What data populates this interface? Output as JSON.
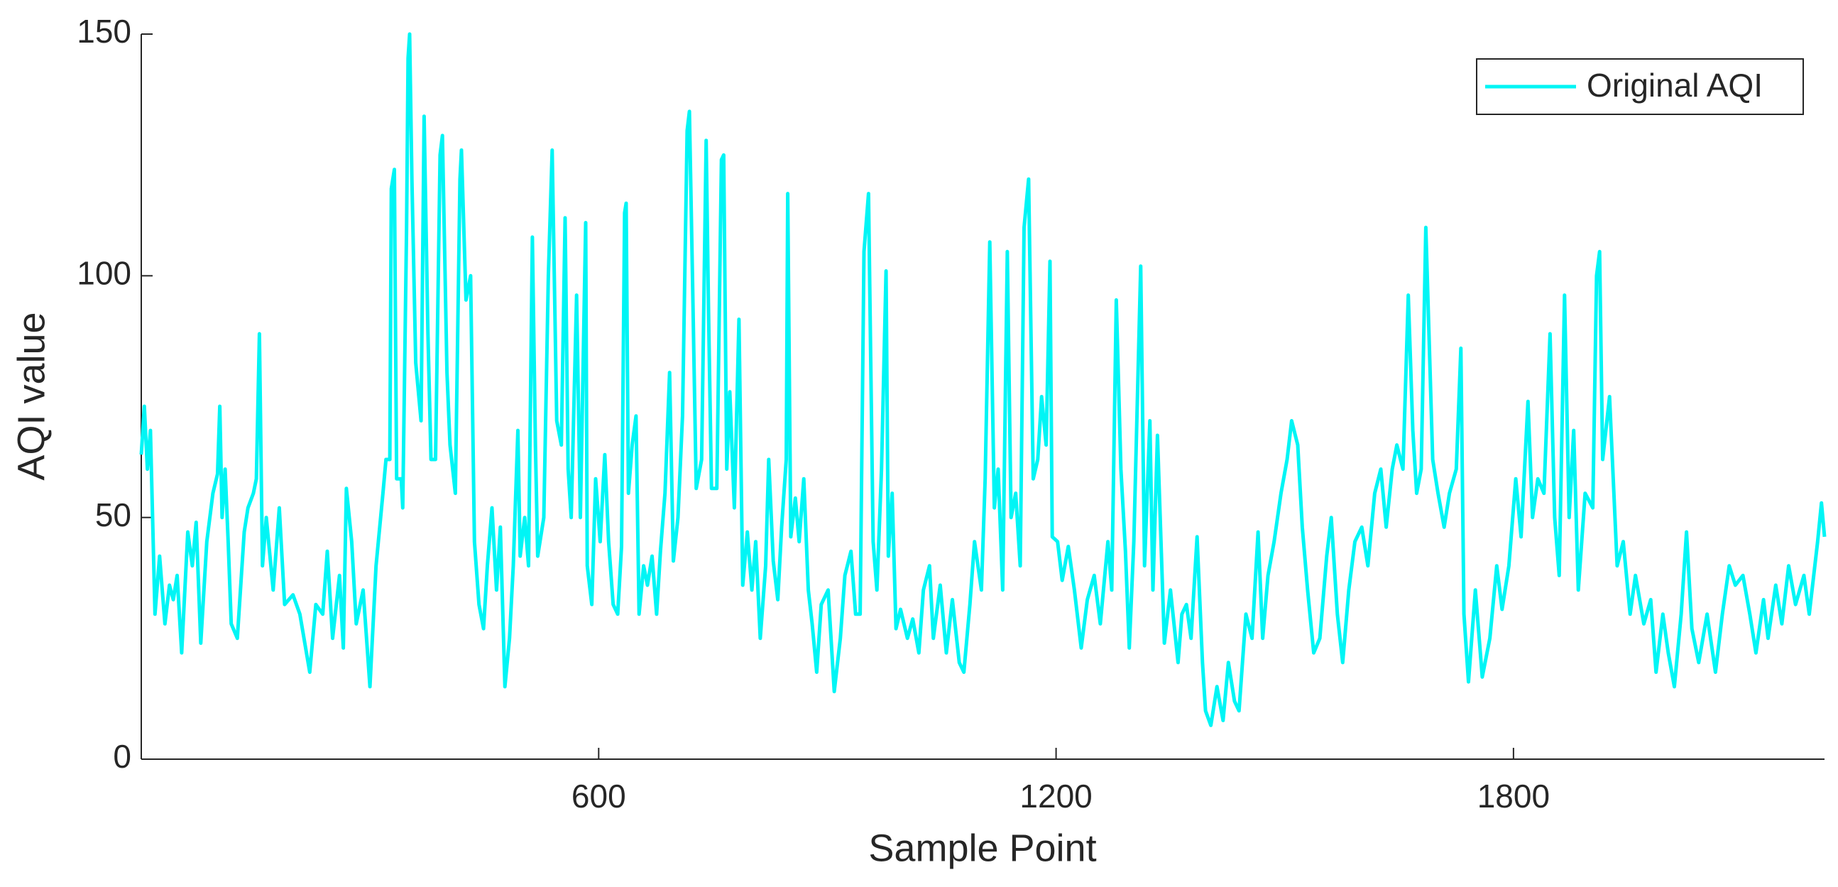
{
  "chart_data": {
    "type": "line",
    "xlabel": "Sample Point",
    "ylabel": "AQI value",
    "xlim": [
      0,
      2208
    ],
    "ylim": [
      0,
      150
    ],
    "xticks": [
      600,
      1200,
      1800
    ],
    "yticks": [
      0,
      50,
      100,
      150
    ],
    "legend": "northeast",
    "x": [
      0,
      4,
      8,
      12,
      18,
      24,
      31,
      37,
      42,
      47,
      53,
      61,
      67,
      72,
      78,
      86,
      94,
      100,
      103,
      106,
      110,
      114,
      118,
      126,
      135,
      140,
      147,
      151,
      155,
      159,
      164,
      173,
      181,
      188,
      199,
      208,
      221,
      229,
      238,
      244,
      251,
      260,
      265,
      269,
      276,
      282,
      291,
      300,
      308,
      317,
      321,
      326,
      328,
      332,
      335,
      341,
      343,
      348,
      350,
      352,
      355,
      360,
      367,
      371,
      376,
      380,
      386,
      392,
      395,
      401,
      405,
      412,
      418,
      420,
      426,
      432,
      437,
      443,
      449,
      454,
      460,
      466,
      471,
      477,
      483,
      488,
      494,
      497,
      503,
      508,
      513,
      517,
      520,
      528,
      534,
      539,
      545,
      551,
      556,
      560,
      564,
      571,
      576,
      583,
      585,
      591,
      596,
      602,
      608,
      613,
      619,
      625,
      630,
      634,
      636,
      639,
      644,
      649,
      653,
      659,
      664,
      670,
      676,
      681,
      687,
      693,
      698,
      704,
      710,
      716,
      719,
      723,
      728,
      735,
      741,
      744,
      748,
      755,
      761,
      764,
      768,
      772,
      778,
      784,
      789,
      795,
      801,
      806,
      812,
      819,
      823,
      829,
      835,
      840,
      846,
      848,
      852,
      858,
      863,
      869,
      875,
      880,
      886,
      892,
      901,
      909,
      917,
      923,
      931,
      937,
      943,
      948,
      954,
      960,
      965,
      971,
      977,
      980,
      985,
      990,
      996,
      1005,
      1012,
      1020,
      1026,
      1034,
      1039,
      1048,
      1056,
      1064,
      1073,
      1079,
      1087,
      1093,
      1102,
      1107,
      1113,
      1119,
      1124,
      1130,
      1136,
      1141,
      1147,
      1153,
      1158,
      1164,
      1170,
      1176,
      1181,
      1187,
      1192,
      1195,
      1202,
      1208,
      1216,
      1224,
      1233,
      1241,
      1250,
      1258,
      1268,
      1273,
      1279,
      1285,
      1291,
      1296,
      1302,
      1311,
      1316,
      1323,
      1327,
      1333,
      1342,
      1350,
      1360,
      1365,
      1371,
      1377,
      1385,
      1392,
      1396,
      1403,
      1411,
      1419,
      1426,
      1434,
      1440,
      1449,
      1457,
      1465,
      1471,
      1478,
      1486,
      1495,
      1503,
      1509,
      1517,
      1523,
      1530,
      1538,
      1546,
      1555,
      1561,
      1569,
      1576,
      1584,
      1592,
      1601,
      1609,
      1618,
      1626,
      1633,
      1641,
      1647,
      1655,
      1662,
      1668,
      1673,
      1679,
      1685,
      1694,
      1701,
      1709,
      1716,
      1725,
      1731,
      1735,
      1741,
      1750,
      1759,
      1769,
      1778,
      1785,
      1794,
      1803,
      1810,
      1819,
      1825,
      1832,
      1840,
      1848,
      1854,
      1860,
      1867,
      1873,
      1879,
      1885,
      1894,
      1904,
      1909,
      1913,
      1917,
      1926,
      1936,
      1944,
      1953,
      1960,
      1971,
      1980,
      1987,
      1996,
      2003,
      2011,
      2020,
      2027,
      2034,
      2043,
      2054,
      2065,
      2074,
      2083,
      2091,
      2101,
      2110,
      2118,
      2128,
      2134,
      2144,
      2152,
      2161,
      2170,
      2181,
      2188,
      2199,
      2204,
      2208
    ],
    "series": [
      {
        "name": "Original AQI",
        "color": "#00f5f5",
        "values": [
          63,
          73,
          60,
          68,
          30,
          42,
          28,
          36,
          33,
          38,
          22,
          47,
          40,
          49,
          24,
          45,
          55,
          59,
          73,
          50,
          60,
          45,
          28,
          25,
          47,
          52,
          55,
          58,
          88,
          40,
          50,
          35,
          52,
          32,
          34,
          30,
          18,
          32,
          30,
          43,
          25,
          38,
          23,
          56,
          45,
          28,
          35,
          15,
          40,
          55,
          62,
          62,
          118,
          122,
          58,
          58,
          52,
          110,
          145,
          150,
          120,
          82,
          70,
          133,
          88,
          62,
          62,
          125,
          129,
          80,
          65,
          55,
          120,
          126,
          95,
          100,
          45,
          32,
          27,
          40,
          52,
          35,
          48,
          15,
          25,
          40,
          68,
          42,
          50,
          40,
          108,
          65,
          42,
          50,
          100,
          126,
          70,
          65,
          112,
          60,
          50,
          96,
          50,
          111,
          40,
          32,
          58,
          45,
          63,
          45,
          32,
          30,
          44,
          113,
          115,
          55,
          65,
          71,
          30,
          40,
          36,
          42,
          30,
          43,
          55,
          80,
          41,
          50,
          71,
          130,
          134,
          100,
          56,
          62,
          128,
          94,
          56,
          56,
          124,
          125,
          60,
          76,
          52,
          91,
          36,
          47,
          35,
          45,
          25,
          40,
          62,
          41,
          33,
          48,
          62,
          117,
          46,
          54,
          45,
          58,
          35,
          28,
          18,
          32,
          35,
          14,
          25,
          38,
          43,
          30,
          30,
          105,
          117,
          45,
          35,
          60,
          101,
          42,
          55,
          27,
          31,
          25,
          29,
          22,
          35,
          40,
          25,
          36,
          22,
          33,
          20,
          18,
          32,
          45,
          35,
          58,
          107,
          52,
          60,
          35,
          105,
          50,
          55,
          40,
          110,
          120,
          58,
          62,
          75,
          65,
          103,
          46,
          45,
          37,
          44,
          35,
          23,
          33,
          38,
          28,
          45,
          35,
          95,
          60,
          43,
          23,
          45,
          102,
          40,
          70,
          35,
          67,
          24,
          35,
          20,
          30,
          32,
          25,
          46,
          20,
          10,
          7,
          15,
          8,
          20,
          12,
          10,
          30,
          25,
          47,
          25,
          38,
          45,
          55,
          62,
          70,
          65,
          48,
          35,
          22,
          25,
          42,
          50,
          30,
          20,
          35,
          45,
          48,
          40,
          55,
          60,
          48,
          60,
          65,
          60,
          96,
          68,
          55,
          60,
          110,
          62,
          55,
          48,
          55,
          60,
          85,
          30,
          16,
          35,
          17,
          25,
          40,
          31,
          40,
          58,
          46,
          74,
          50,
          58,
          55,
          88,
          50,
          38,
          96,
          50,
          68,
          35,
          55,
          52,
          100,
          105,
          62,
          75,
          40,
          45,
          30,
          38,
          28,
          33,
          18,
          30,
          22,
          15,
          30,
          47,
          27,
          20,
          30,
          18,
          30,
          40,
          36,
          38,
          30,
          22,
          33,
          25,
          36,
          28,
          40,
          32,
          38,
          30,
          45,
          53,
          46
        ]
      }
    ]
  }
}
